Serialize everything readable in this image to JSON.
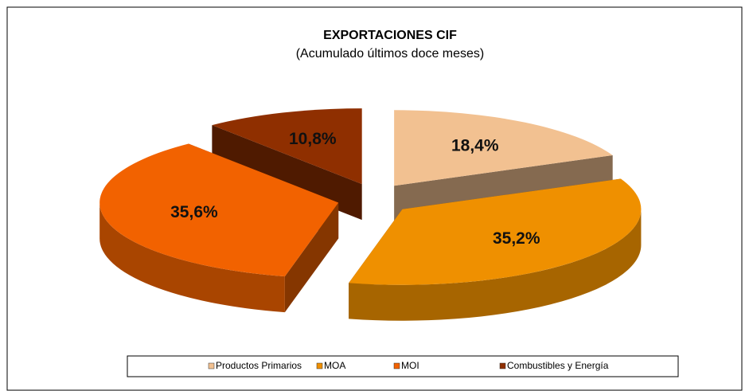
{
  "chart_data": {
    "type": "pie",
    "title": "EXPORTACIONES CIF",
    "subtitle": "(Acumulado últimos doce meses)",
    "categories": [
      "Productos Primarios",
      "MOA",
      "MOI",
      "Combustibles y Energía"
    ],
    "values": [
      18.4,
      35.2,
      35.6,
      10.8
    ],
    "value_labels": [
      "18,4%",
      "35,2%",
      "35,6%",
      "10,8%"
    ],
    "colors": [
      "#f2c191",
      "#ef9000",
      "#f26200",
      "#8f2f00"
    ],
    "legend": "bottom"
  }
}
